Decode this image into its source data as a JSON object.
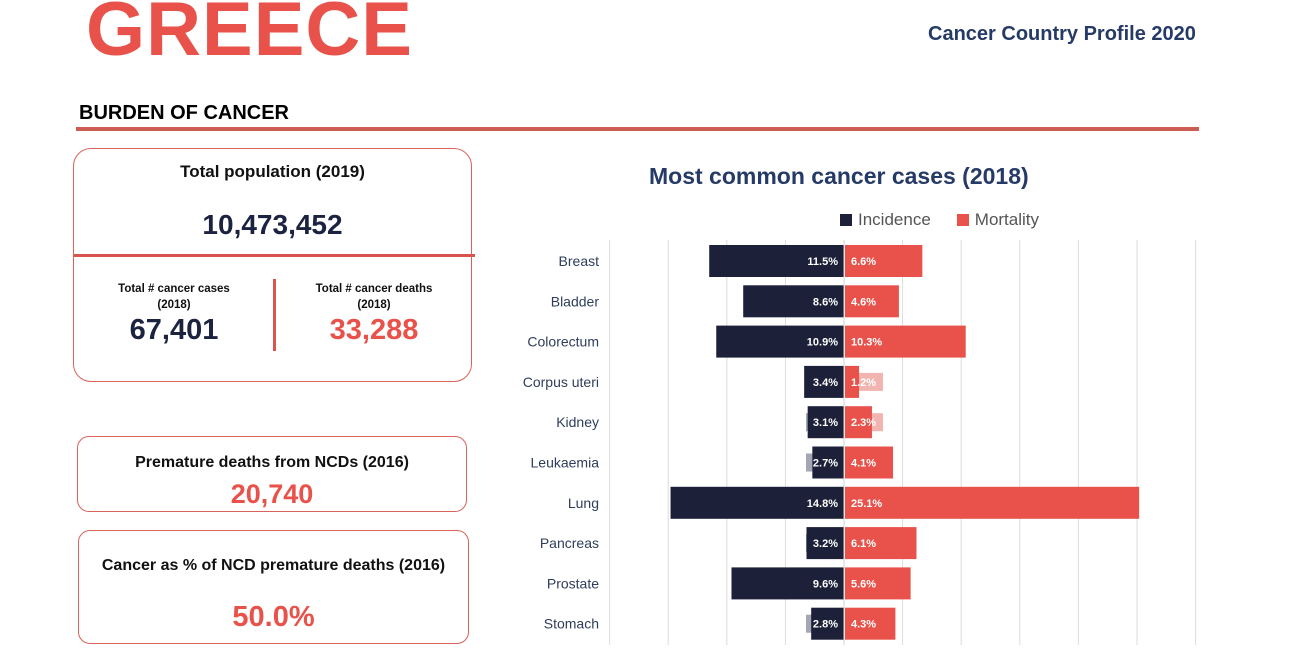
{
  "header": {
    "country": "GREECE",
    "profile_title": "Cancer Country Profile 2020",
    "section_title": "BURDEN OF CANCER"
  },
  "stats": {
    "population": {
      "label": "Total population (2019)",
      "value": "10,473,452"
    },
    "cases": {
      "label_line1": "Total # cancer cases",
      "label_line2": "(2018)",
      "value": "67,401"
    },
    "deaths": {
      "label_line1": "Total # cancer deaths",
      "label_line2": "(2018)",
      "value": "33,288"
    },
    "ncd_premature": {
      "label": "Premature deaths from NCDs (2016)",
      "value": "20,740"
    },
    "cancer_pct_ncd": {
      "label": "Cancer as % of NCD premature deaths (2016)",
      "value": "50.0%"
    }
  },
  "colors": {
    "incidence": "#1c2039",
    "mortality": "#e8524a",
    "accent": "#e8524a",
    "navy_text": "#253a66"
  },
  "chart_data": {
    "type": "bar",
    "orientation": "horizontal-diverging",
    "title": "Most common cancer cases (2018)",
    "xlabel": "",
    "ylabel": "",
    "unit": "%",
    "grid": true,
    "xlim": [
      -20,
      30
    ],
    "grid_step": 5,
    "legend": {
      "position": "top-right",
      "entries": [
        "Incidence",
        "Mortality"
      ]
    },
    "categories": [
      "Breast",
      "Bladder",
      "Colorectum",
      "Corpus uteri",
      "Kidney",
      "Leukaemia",
      "Lung",
      "Pancreas",
      "Prostate",
      "Stomach"
    ],
    "series": [
      {
        "name": "Incidence",
        "direction": "left",
        "values": [
          11.5,
          8.6,
          10.9,
          3.4,
          3.1,
          2.7,
          14.8,
          3.2,
          9.6,
          2.8
        ],
        "labels": [
          "11.5%",
          "8.6%",
          "10.9%",
          "3.4%",
          "3.1%",
          "2.7%",
          "14.8%",
          "3.2%",
          "9.6%",
          "2.8%"
        ]
      },
      {
        "name": "Mortality",
        "direction": "right",
        "values": [
          6.6,
          4.6,
          10.3,
          1.2,
          2.3,
          4.1,
          25.1,
          6.1,
          5.6,
          4.3
        ],
        "labels": [
          "6.6%",
          "4.6%",
          "10.3%",
          "1.2%",
          "2.3%",
          "4.1%",
          "25.1%",
          "6.1%",
          "5.6%",
          "4.3%"
        ]
      }
    ]
  }
}
